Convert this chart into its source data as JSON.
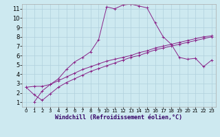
{
  "title": "",
  "xlabel": "Windchill (Refroidissement éolien,°C)",
  "ylabel": "",
  "background_color": "#cde9f0",
  "grid_color": "#b0d0dc",
  "line_color": "#882288",
  "xlim": [
    -0.5,
    23.5
  ],
  "ylim": [
    0.5,
    11.5
  ],
  "xticks": [
    0,
    1,
    2,
    3,
    4,
    5,
    6,
    7,
    8,
    9,
    10,
    11,
    12,
    13,
    14,
    15,
    16,
    17,
    18,
    19,
    20,
    21,
    22,
    23
  ],
  "yticks": [
    1,
    2,
    3,
    4,
    5,
    6,
    7,
    8,
    9,
    10,
    11
  ],
  "line1_x": [
    0,
    1,
    2,
    3,
    4,
    5,
    6,
    7,
    8,
    9,
    10,
    11,
    12,
    13,
    14,
    15,
    16,
    17,
    18,
    19,
    20,
    21,
    22,
    23
  ],
  "line1_y": [
    2.6,
    2.7,
    2.7,
    2.9,
    3.3,
    3.7,
    4.1,
    4.5,
    4.8,
    5.1,
    5.4,
    5.6,
    5.8,
    6.0,
    6.3,
    6.5,
    6.8,
    7.0,
    7.2,
    7.4,
    7.6,
    7.8,
    8.0,
    8.1
  ],
  "line2_x": [
    1,
    2,
    3,
    4,
    5,
    6,
    7,
    8,
    9,
    10,
    11,
    12,
    13,
    14,
    15,
    16,
    17,
    18,
    19,
    20,
    21,
    22,
    23
  ],
  "line2_y": [
    1.0,
    2.2,
    2.9,
    3.5,
    4.5,
    5.3,
    5.8,
    6.4,
    7.7,
    11.2,
    11.0,
    11.4,
    11.5,
    11.3,
    11.1,
    9.5,
    8.0,
    7.2,
    5.8,
    5.6,
    5.7,
    4.8,
    5.5
  ],
  "line3_x": [
    0,
    1,
    2,
    3,
    4,
    5,
    6,
    7,
    8,
    9,
    10,
    11,
    12,
    13,
    14,
    15,
    16,
    17,
    18,
    19,
    20,
    21,
    22,
    23
  ],
  "line3_y": [
    2.6,
    1.8,
    1.2,
    1.9,
    2.6,
    3.1,
    3.5,
    3.9,
    4.3,
    4.6,
    4.9,
    5.2,
    5.5,
    5.8,
    6.0,
    6.3,
    6.6,
    6.8,
    7.0,
    7.2,
    7.4,
    7.6,
    7.8,
    8.0
  ],
  "xlabel_fontsize": 6.0,
  "tick_fontsize_x": 5.0,
  "tick_fontsize_y": 6.0
}
